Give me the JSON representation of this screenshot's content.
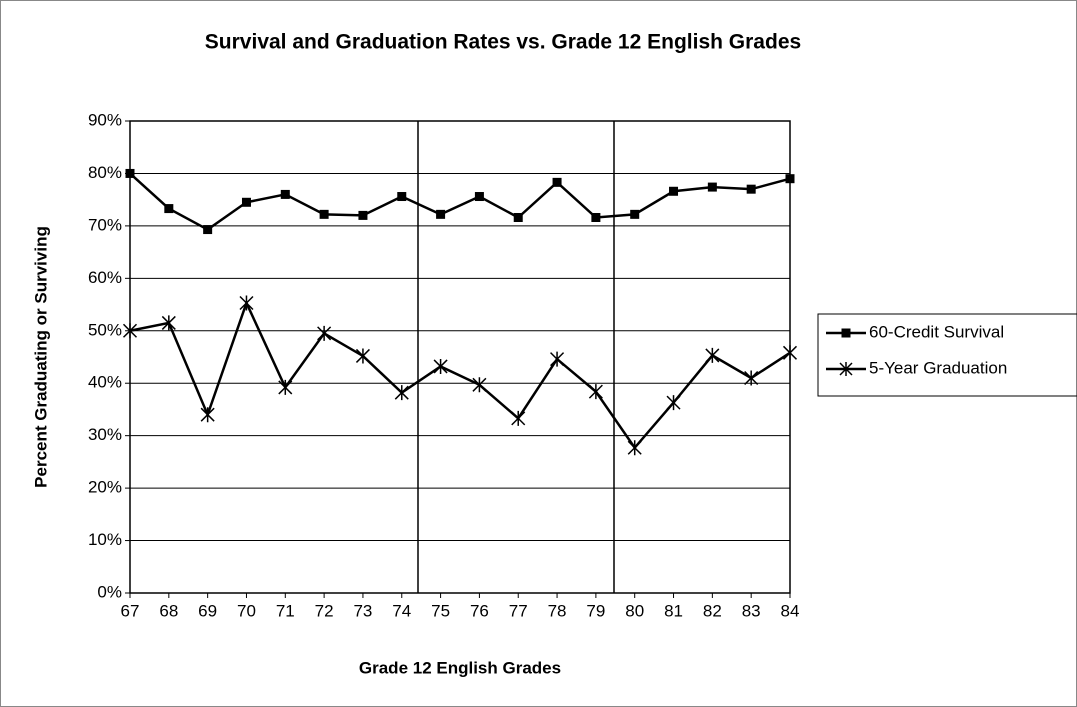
{
  "chart_data": {
    "type": "line",
    "title": "Survival and Graduation Rates vs. Grade 12 English Grades",
    "xlabel": "Grade 12 English Grades",
    "ylabel": "Percent Graduating or Surviving",
    "x": [
      67,
      68,
      69,
      70,
      71,
      72,
      73,
      74,
      75,
      76,
      77,
      78,
      79,
      80,
      81,
      82,
      83,
      84
    ],
    "xlim": [
      67,
      84
    ],
    "xticks": [
      67,
      68,
      69,
      70,
      71,
      72,
      73,
      74,
      75,
      76,
      77,
      78,
      79,
      80,
      81,
      82,
      83,
      84
    ],
    "ylim": [
      0,
      90
    ],
    "yticks": [
      {
        "value": 0,
        "label": "0%"
      },
      {
        "value": 10,
        "label": "10%"
      },
      {
        "value": 20,
        "label": "20%"
      },
      {
        "value": 30,
        "label": "30%"
      },
      {
        "value": 40,
        "label": "40%"
      },
      {
        "value": 50,
        "label": "50%"
      },
      {
        "value": 60,
        "label": "60%"
      },
      {
        "value": 70,
        "label": "70%"
      },
      {
        "value": 80,
        "label": "80%"
      },
      {
        "value": 90,
        "label": "90%"
      }
    ],
    "grid": true,
    "legend": "right",
    "series": [
      {
        "name": "60-Credit Survival",
        "color": "#000000",
        "marker": "square",
        "values": [
          80,
          73.3,
          69.3,
          74.5,
          76,
          72.2,
          72,
          75.6,
          72.2,
          75.6,
          71.6,
          78.3,
          71.6,
          72.2,
          76.6,
          77.4,
          77,
          79
        ]
      },
      {
        "name": "5-Year Graduation",
        "color": "#000000",
        "marker": "asterisk",
        "values": [
          50,
          51.5,
          34,
          55.3,
          39.2,
          49.5,
          45.2,
          38.2,
          43.2,
          39.7,
          33.3,
          44.6,
          38.4,
          27.7,
          36.3,
          45.3,
          41,
          45.8
        ]
      }
    ]
  }
}
